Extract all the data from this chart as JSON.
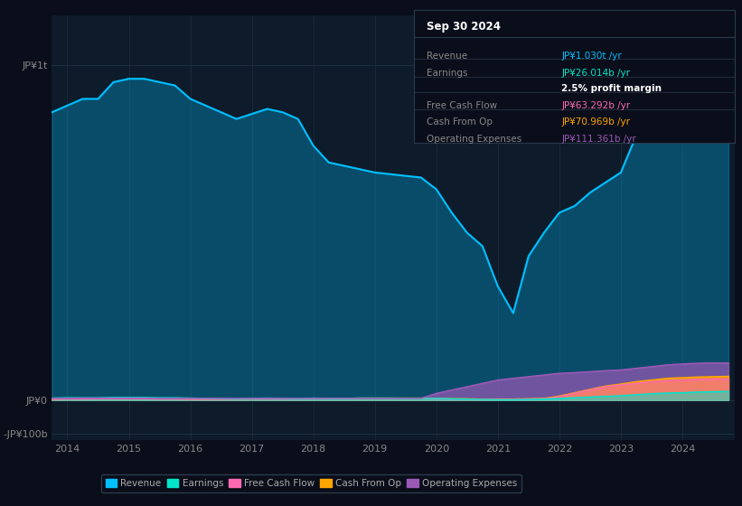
{
  "background_color": "#0a0e1a",
  "plot_bg_color": "#0d1b2a",
  "colors": {
    "revenue": "#00bfff",
    "earnings": "#00e5cc",
    "free_cash_flow": "#ff69b4",
    "cash_from_op": "#ffa500",
    "operating_expenses": "#9b59b6"
  },
  "legend": [
    {
      "label": "Revenue",
      "color": "#00bfff"
    },
    {
      "label": "Earnings",
      "color": "#00e5cc"
    },
    {
      "label": "Free Cash Flow",
      "color": "#ff69b4"
    },
    {
      "label": "Cash From Op",
      "color": "#ffa500"
    },
    {
      "label": "Operating Expenses",
      "color": "#9b59b6"
    }
  ],
  "years": [
    2013.75,
    2014.0,
    2014.25,
    2014.5,
    2014.75,
    2015.0,
    2015.25,
    2015.5,
    2015.75,
    2016.0,
    2016.25,
    2016.5,
    2016.75,
    2017.0,
    2017.25,
    2017.5,
    2017.75,
    2018.0,
    2018.25,
    2018.5,
    2018.75,
    2019.0,
    2019.25,
    2019.5,
    2019.75,
    2020.0,
    2020.25,
    2020.5,
    2020.75,
    2021.0,
    2021.25,
    2021.5,
    2021.75,
    2022.0,
    2022.25,
    2022.5,
    2022.75,
    2023.0,
    2023.25,
    2023.5,
    2023.75,
    2024.0,
    2024.25,
    2024.5,
    2024.75
  ],
  "revenue": [
    860,
    880,
    900,
    900,
    950,
    960,
    960,
    950,
    940,
    900,
    880,
    860,
    840,
    855,
    870,
    860,
    840,
    760,
    710,
    700,
    690,
    680,
    675,
    670,
    665,
    630,
    560,
    500,
    460,
    340,
    260,
    430,
    500,
    560,
    580,
    620,
    650,
    680,
    790,
    850,
    870,
    890,
    940,
    980,
    1030
  ],
  "earnings": [
    6,
    7,
    7,
    7,
    8,
    8,
    8,
    7,
    7,
    6,
    5,
    4,
    3,
    5,
    6,
    5,
    4,
    6,
    5,
    5,
    6,
    6,
    6,
    5,
    5,
    5,
    4,
    3,
    2,
    1,
    1,
    2,
    3,
    5,
    7,
    9,
    11,
    13,
    16,
    19,
    21,
    22,
    24,
    25,
    26
  ],
  "free_cash_flow": [
    2,
    3,
    3,
    4,
    4,
    4,
    4,
    3,
    3,
    2,
    2,
    2,
    2,
    3,
    3,
    3,
    3,
    4,
    4,
    4,
    5,
    5,
    5,
    5,
    5,
    4,
    3,
    3,
    2,
    2,
    2,
    3,
    4,
    10,
    20,
    30,
    40,
    45,
    50,
    55,
    58,
    60,
    62,
    63,
    63
  ],
  "cash_from_op": [
    3,
    4,
    4,
    5,
    5,
    5,
    5,
    4,
    4,
    3,
    3,
    3,
    3,
    4,
    4,
    4,
    4,
    5,
    5,
    5,
    6,
    6,
    6,
    6,
    6,
    5,
    4,
    4,
    3,
    3,
    3,
    4,
    5,
    12,
    22,
    32,
    42,
    48,
    55,
    60,
    65,
    67,
    69,
    70,
    71
  ],
  "operating_expenses": [
    5,
    5,
    6,
    6,
    6,
    6,
    6,
    5,
    5,
    5,
    5,
    5,
    5,
    5,
    5,
    5,
    5,
    5,
    5,
    5,
    5,
    5,
    5,
    5,
    5,
    20,
    30,
    40,
    50,
    60,
    65,
    70,
    75,
    80,
    82,
    85,
    88,
    90,
    95,
    100,
    105,
    108,
    110,
    111,
    111
  ],
  "ylim": [
    -120,
    1150
  ],
  "xlim": [
    2013.75,
    2024.85
  ],
  "yticks": [
    -100,
    0,
    1000
  ],
  "ytick_labels": [
    "-JP¥100b",
    "JP¥0",
    "JP¥1t"
  ],
  "xticks": [
    2014,
    2015,
    2016,
    2017,
    2018,
    2019,
    2020,
    2021,
    2022,
    2023,
    2024
  ],
  "info_box": {
    "title": "Sep 30 2024",
    "rows": [
      {
        "label": "Revenue",
        "value": "JP¥1.030t /yr",
        "value_color": "#00bfff"
      },
      {
        "label": "Earnings",
        "value": "JP¥26.014b /yr",
        "value_color": "#00e5cc"
      },
      {
        "label": "",
        "value": "2.5% profit margin",
        "value_color": "#ffffff",
        "bold": true
      },
      {
        "label": "Free Cash Flow",
        "value": "JP¥63.292b /yr",
        "value_color": "#ff69b4"
      },
      {
        "label": "Cash From Op",
        "value": "JP¥70.969b /yr",
        "value_color": "#ffa500"
      },
      {
        "label": "Operating Expenses",
        "value": "JP¥111.361b /yr",
        "value_color": "#9b59b6"
      }
    ]
  }
}
